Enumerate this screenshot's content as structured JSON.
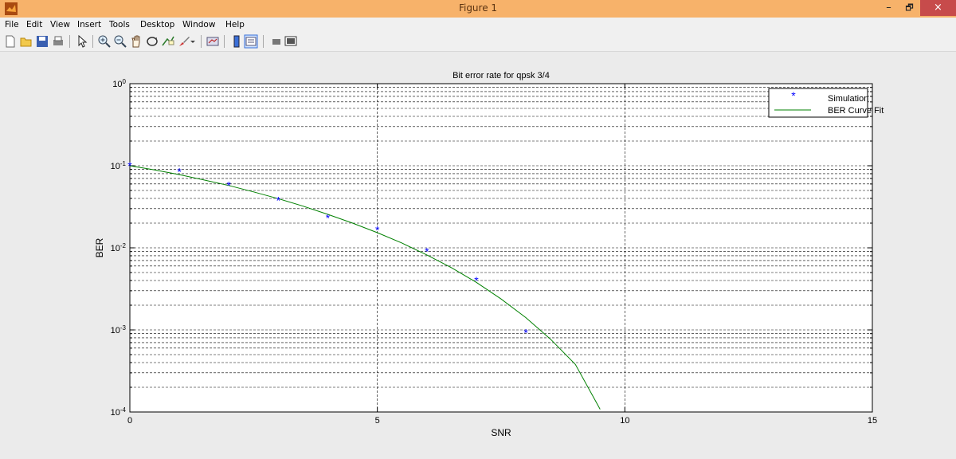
{
  "window": {
    "title": "Figure 1",
    "minimize": "–",
    "maximize": "🗗",
    "close": "×"
  },
  "menu": [
    "File",
    "Edit",
    "View",
    "Insert",
    "Tools",
    "Desktop",
    "Window",
    "Help"
  ],
  "toolbar_icons": [
    "new-figure-icon",
    "open-file-icon",
    "save-icon",
    "print-icon",
    "pointer-icon",
    "zoom-in-icon",
    "zoom-out-icon",
    "pan-icon",
    "rotate-3d-icon",
    "data-cursor-icon",
    "brush-icon",
    "link-plot-icon",
    "colorbar-icon",
    "legend-icon",
    "hide-plot-tools-icon",
    "show-plot-tools-icon"
  ],
  "chart_data": {
    "type": "scatter",
    "title": "Bit error rate for qpsk 3/4",
    "xlabel": "SNR",
    "ylabel": "BER",
    "xlim": [
      0,
      15
    ],
    "ylim": [
      0.0001,
      1
    ],
    "yscale": "log",
    "grid": true,
    "legend_position": "top-right",
    "x_ticks": [
      "0",
      "5",
      "10",
      "15"
    ],
    "y_ticks": [
      {
        "base": "10",
        "exp": "0"
      },
      {
        "base": "10",
        "exp": "-1"
      },
      {
        "base": "10",
        "exp": "-2"
      },
      {
        "base": "10",
        "exp": "-3"
      },
      {
        "base": "10",
        "exp": "-4"
      }
    ],
    "series": [
      {
        "name": "Simulation",
        "marker": "*",
        "color": "#0000ff",
        "x": [
          0,
          1,
          2,
          3,
          4,
          5,
          6,
          7,
          8
        ],
        "y": [
          0.1,
          0.085,
          0.058,
          0.038,
          0.023,
          0.0165,
          0.009,
          0.004,
          0.00092
        ]
      },
      {
        "name": "BER Curve Fit",
        "line": "solid",
        "color": "#008000",
        "x": [
          0,
          0.5,
          1,
          1.5,
          2,
          2.5,
          3,
          3.5,
          4,
          4.5,
          5,
          5.5,
          6,
          6.5,
          7,
          7.5,
          8,
          8.5,
          9,
          9.5
        ],
        "y": [
          0.1,
          0.089,
          0.078,
          0.067,
          0.0575,
          0.048,
          0.0397,
          0.0322,
          0.0256,
          0.02,
          0.0153,
          0.0114,
          0.0082,
          0.0057,
          0.0038,
          0.00238,
          0.00141,
          0.00077,
          0.00038,
          0.000108
        ]
      }
    ]
  }
}
